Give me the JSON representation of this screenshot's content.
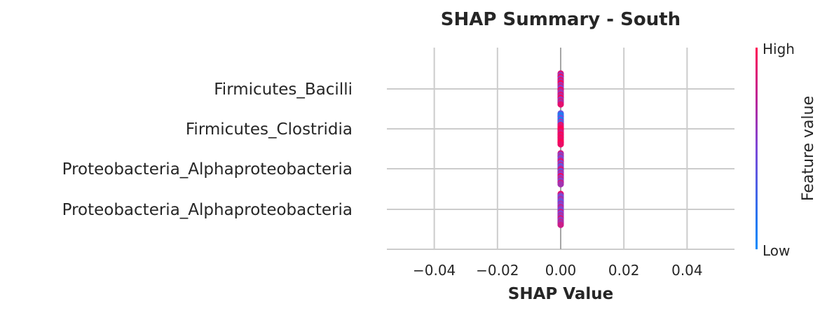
{
  "chart_data": {
    "type": "scatter",
    "title": "SHAP Summary - South",
    "xlabel": "SHAP Value",
    "xlim": [
      -0.055,
      0.055
    ],
    "xticks": [
      -0.04,
      -0.02,
      0.0,
      0.02,
      0.04
    ],
    "xtick_labels": [
      "−0.04",
      "−0.02",
      "0.00",
      "0.02",
      "0.04"
    ],
    "grid": true,
    "features": [
      "Firmicutes_Bacilli",
      "Firmicutes_Clostridia",
      "Proteobacteria_Alphaproteobacteria",
      "Proteobacteria_Alphaproteobacteria"
    ],
    "series": [
      {
        "feature_index": 0,
        "shap_values": [
          0,
          0,
          0,
          0,
          0,
          0,
          0,
          0,
          0,
          0,
          0,
          0,
          0,
          0,
          0,
          0,
          0,
          0,
          0,
          0
        ],
        "feature_values": [
          0.85,
          0.6,
          0.95,
          0.55,
          0.9,
          0.7,
          1.0,
          0.65,
          0.8,
          0.5,
          0.92,
          0.75,
          0.6,
          0.88,
          0.7,
          0.98,
          0.58,
          0.82,
          0.66,
          0.9
        ]
      },
      {
        "feature_index": 1,
        "shap_values": [
          0,
          0,
          0,
          0,
          0,
          0,
          0,
          0,
          0,
          0,
          0,
          0,
          0,
          0,
          0,
          0,
          0,
          0,
          0,
          0
        ],
        "feature_values": [
          0.4,
          0.1,
          0.2,
          0.5,
          0.05,
          0.6,
          0.3,
          0.9,
          0.85,
          0.95,
          1.0,
          0.92,
          0.8,
          0.98,
          0.88,
          0.97,
          0.9,
          0.95,
          1.0,
          0.93
        ]
      },
      {
        "feature_index": 2,
        "shap_values": [
          0,
          0,
          0,
          0,
          0,
          0,
          0,
          0,
          0,
          0,
          0,
          0,
          0,
          0,
          0,
          0,
          0,
          0,
          0,
          0
        ],
        "feature_values": [
          0.8,
          0.55,
          0.7,
          0.45,
          0.65,
          0.9,
          0.5,
          0.75,
          0.35,
          0.6,
          0.85,
          0.4,
          0.7,
          0.55,
          0.95,
          0.6,
          0.75,
          0.5,
          0.8,
          0.65
        ]
      },
      {
        "feature_index": 3,
        "shap_values": [
          0,
          0,
          0,
          0,
          0,
          0,
          0,
          0,
          0,
          0,
          0,
          0,
          0,
          0,
          0,
          0,
          0,
          0,
          0,
          0
        ],
        "feature_values": [
          0.9,
          0.6,
          0.45,
          0.7,
          0.55,
          0.4,
          0.65,
          0.5,
          0.75,
          0.6,
          0.45,
          0.8,
          0.5,
          0.7,
          0.6,
          0.85,
          0.55,
          0.75,
          0.65,
          0.8
        ]
      }
    ],
    "colorbar": {
      "label": "Feature value",
      "high_label": "High",
      "low_label": "Low",
      "low_color": "#008afb",
      "mid_color": "#7c48d8",
      "high_color": "#ff0052"
    }
  }
}
